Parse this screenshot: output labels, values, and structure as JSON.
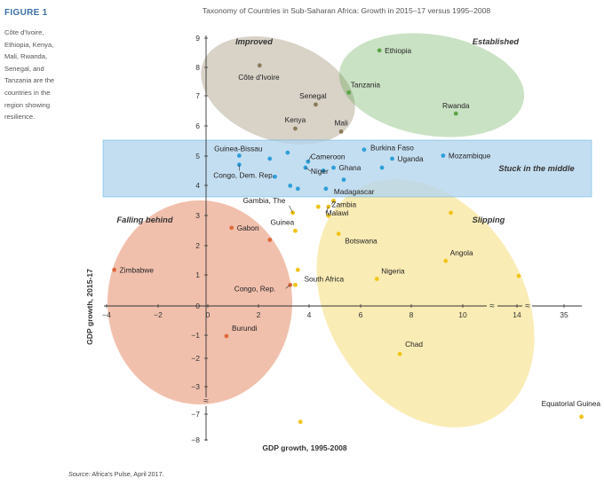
{
  "figure_label": "FIGURE 1",
  "caption": "Côte d'Ivoire, Ethiopia, Kenya, Mali, Rwanda, Senegal, and Tanzania are the countries in the region showing resilience.",
  "source_prefix": "Source:",
  "source_text": " Africa's Pulse, April 2017.",
  "chart_data": {
    "type": "scatter",
    "title": "Taxonomy of Countries in Sub-Saharan Africa: Growth in 2015–17 versus 1995–2008",
    "xlabel": "GDP growth, 1995-2008",
    "ylabel": "GDP growth, 2015-17",
    "x_ticks": [
      "−4",
      "−2",
      "0",
      "2",
      "4",
      "6",
      "8",
      "10",
      "14",
      "35"
    ],
    "y_ticks": [
      "9",
      "8",
      "7",
      "6",
      "5",
      "4",
      "3",
      "2",
      "1",
      "0",
      "−1",
      "−2",
      "−3",
      "−7",
      "−8"
    ],
    "axis_break_symbol": "≈",
    "region_labels": {
      "improved": "Improved",
      "established": "Established",
      "stuck": "Stuck in the middle",
      "falling": "Falling behind",
      "slipping": "Slipping"
    },
    "colors": {
      "improved": "#8c7c5a",
      "established": "#5aa646",
      "stuck": "#2e9fd9",
      "falling": "#de6a3c",
      "slipping": "#f0c419"
    },
    "points": [
      {
        "name": "Côte d'Ivoire",
        "group": "improved",
        "x": 2.1,
        "y": 8.0
      },
      {
        "name": "Senegal",
        "group": "improved",
        "x": 4.3,
        "y": 6.7
      },
      {
        "name": "Kenya",
        "group": "improved",
        "x": 3.5,
        "y": 5.9
      },
      {
        "name": "Mali",
        "group": "improved",
        "x": 5.3,
        "y": 5.8
      },
      {
        "name": "Ethiopia",
        "group": "established",
        "x": 6.8,
        "y": 8.5
      },
      {
        "name": "Tanzania",
        "group": "established",
        "x": 5.6,
        "y": 7.1
      },
      {
        "name": "Rwanda",
        "group": "established",
        "x": 9.8,
        "y": 6.4
      },
      {
        "name": "Guinea-Bissau",
        "group": "stuck",
        "x": 1.3,
        "y": 5.0
      },
      {
        "name": "Congo, Dem. Rep.",
        "group": "stuck",
        "x": 1.3,
        "y": 4.7
      },
      {
        "name": "Cameroon",
        "group": "stuck",
        "x": 4.0,
        "y": 4.8
      },
      {
        "name": "Niger",
        "group": "stuck",
        "x": 3.9,
        "y": 4.6
      },
      {
        "name": "Ghana",
        "group": "stuck",
        "x": 5.0,
        "y": 4.6
      },
      {
        "name": "Burkina Faso",
        "group": "stuck",
        "x": 6.2,
        "y": 5.2
      },
      {
        "name": "Uganda",
        "group": "stuck",
        "x": 7.3,
        "y": 4.9
      },
      {
        "name": "Mozambique",
        "group": "stuck",
        "x": 9.3,
        "y": 5.0
      },
      {
        "name": "Madagascar",
        "group": "stuck",
        "x": 4.7,
        "y": 3.9
      },
      {
        "name": "",
        "group": "stuck",
        "x": 2.5,
        "y": 4.9
      },
      {
        "name": "",
        "group": "stuck",
        "x": 3.2,
        "y": 5.1
      },
      {
        "name": "",
        "group": "stuck",
        "x": 2.7,
        "y": 4.3
      },
      {
        "name": "",
        "group": "stuck",
        "x": 3.3,
        "y": 4.0
      },
      {
        "name": "",
        "group": "stuck",
        "x": 3.6,
        "y": 3.9
      },
      {
        "name": "",
        "group": "stuck",
        "x": 4.6,
        "y": 4.5
      },
      {
        "name": "",
        "group": "stuck",
        "x": 5.4,
        "y": 4.2
      },
      {
        "name": "",
        "group": "stuck",
        "x": 6.9,
        "y": 4.6
      },
      {
        "name": "Zimbabwe",
        "group": "falling",
        "x": -3.6,
        "y": 1.2
      },
      {
        "name": "Gabon",
        "group": "falling",
        "x": 1.0,
        "y": 2.6
      },
      {
        "name": "",
        "group": "falling",
        "x": 2.5,
        "y": 2.2
      },
      {
        "name": "Congo, Rep.",
        "group": "falling",
        "x": 3.3,
        "y": 0.7
      },
      {
        "name": "Burundi",
        "group": "falling",
        "x": 0.8,
        "y": -1.0
      },
      {
        "name": "Gambia, The",
        "group": "slipping",
        "x": 3.4,
        "y": 3.1
      },
      {
        "name": "Guinea",
        "group": "slipping",
        "x": 3.5,
        "y": 2.5
      },
      {
        "name": "Zambia",
        "group": "slipping",
        "x": 5.0,
        "y": 3.5
      },
      {
        "name": "Malawi",
        "group": "slipping",
        "x": 4.8,
        "y": 3.3
      },
      {
        "name": "",
        "group": "slipping",
        "x": 4.4,
        "y": 3.3
      },
      {
        "name": "",
        "group": "slipping",
        "x": 4.8,
        "y": 3.0
      },
      {
        "name": "Botswana",
        "group": "slipping",
        "x": 5.2,
        "y": 2.4
      },
      {
        "name": "Nigeria",
        "group": "slipping",
        "x": 6.7,
        "y": 0.9
      },
      {
        "name": "South Africa",
        "group": "slipping",
        "x": 3.5,
        "y": 0.7
      },
      {
        "name": "",
        "group": "slipping",
        "x": 3.6,
        "y": 1.2
      },
      {
        "name": "Angola",
        "group": "slipping",
        "x": 9.4,
        "y": 1.5
      },
      {
        "name": "",
        "group": "slipping",
        "x": 9.6,
        "y": 3.1
      },
      {
        "name": "",
        "group": "slipping",
        "x": 13.0,
        "y": 1.0
      },
      {
        "name": "Chad",
        "group": "slipping",
        "x": 7.6,
        "y": -1.6
      },
      {
        "name": "",
        "group": "slipping",
        "x": 3.7,
        "y": -7.3
      },
      {
        "name": "Equatorial Guinea",
        "group": "slipping",
        "x": 37.0,
        "y": -7.1
      }
    ]
  }
}
